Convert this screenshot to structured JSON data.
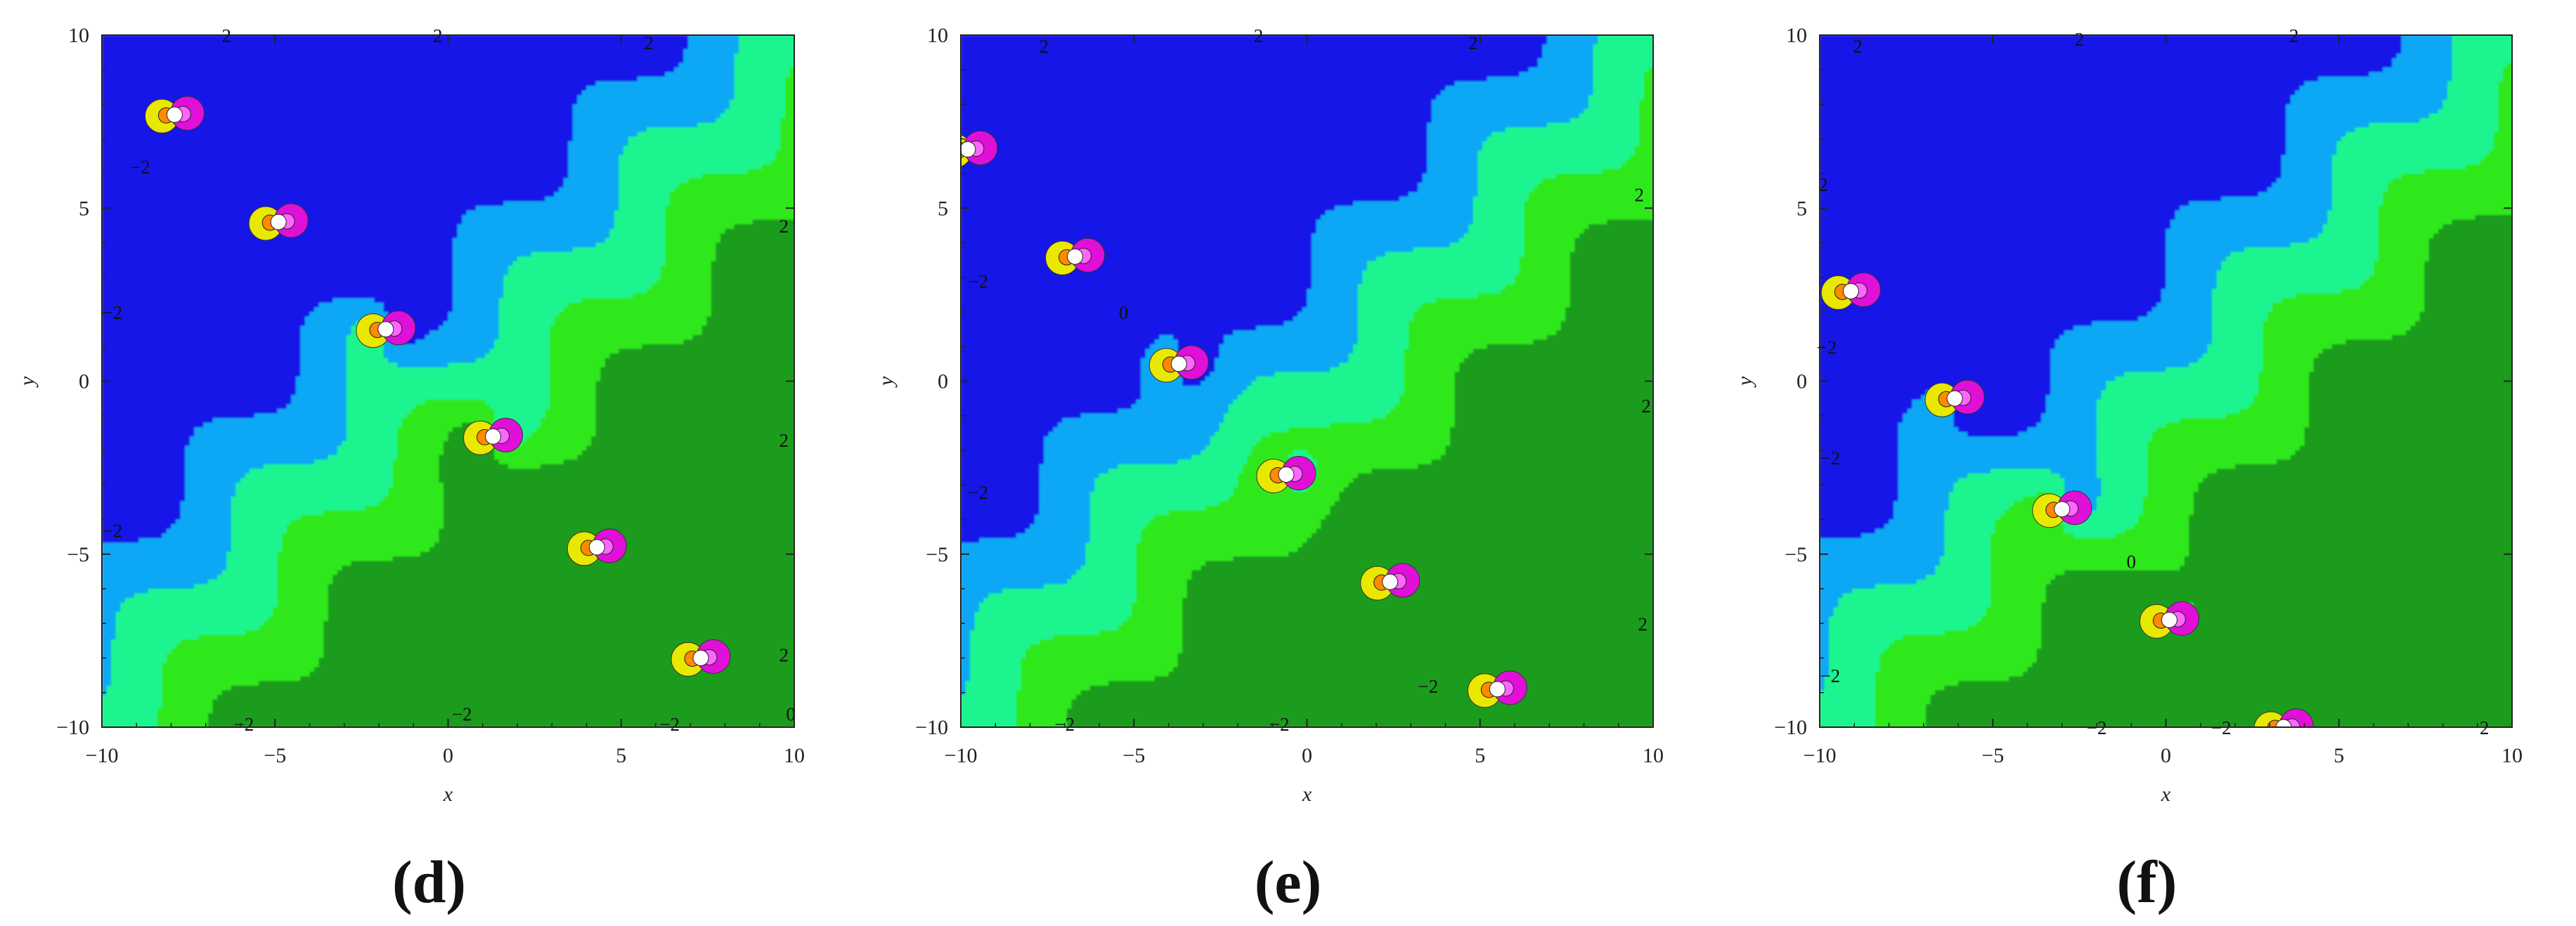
{
  "chart_data": [
    {
      "type": "contour",
      "panel_label": "(d)",
      "xlabel": "x",
      "ylabel": "y",
      "xlim": [
        -10,
        10
      ],
      "ylim": [
        -10,
        10
      ],
      "xticks": [
        "−10",
        "−5",
        "0",
        "5",
        "10"
      ],
      "yticks": [
        "10",
        "5",
        "0",
        "−5",
        "−10"
      ],
      "singularities": [
        [
          -7.9,
          7.7
        ],
        [
          -4.9,
          4.6
        ],
        [
          -1.8,
          1.5
        ],
        [
          1.3,
          -1.6
        ],
        [
          4.3,
          -4.8
        ],
        [
          7.3,
          -8.0
        ]
      ],
      "annotations": [
        {
          "text": "2",
          "x": -6.4,
          "y": 10.0
        },
        {
          "text": "2",
          "x": -0.3,
          "y": 10.0
        },
        {
          "text": "2",
          "x": 5.8,
          "y": 9.8
        },
        {
          "text": "−2",
          "x": -8.9,
          "y": 6.2
        },
        {
          "text": "−2",
          "x": -9.7,
          "y": 2.0
        },
        {
          "text": "−2",
          "x": -9.7,
          "y": -4.3
        },
        {
          "text": "2",
          "x": 9.7,
          "y": 4.5
        },
        {
          "text": "2",
          "x": 9.7,
          "y": -1.7
        },
        {
          "text": "2",
          "x": 9.7,
          "y": -7.9
        },
        {
          "text": "0",
          "x": 9.9,
          "y": -9.6
        },
        {
          "text": "−2",
          "x": -5.9,
          "y": -9.9
        },
        {
          "text": "−2",
          "x": 0.4,
          "y": -9.6
        },
        {
          "text": "−2",
          "x": 6.4,
          "y": -9.9
        }
      ]
    },
    {
      "type": "contour",
      "panel_label": "(e)",
      "xlabel": "x",
      "ylabel": "y",
      "xlim": [
        -10,
        10
      ],
      "ylim": [
        -10,
        10
      ],
      "xticks": [
        "−10",
        "−5",
        "0",
        "5",
        "10"
      ],
      "yticks": [
        "10",
        "5",
        "0",
        "−5",
        "−10"
      ],
      "singularities": [
        [
          -9.8,
          6.7
        ],
        [
          -6.7,
          3.6
        ],
        [
          -3.7,
          0.5
        ],
        [
          -0.6,
          -2.7
        ],
        [
          2.4,
          -5.8
        ],
        [
          5.5,
          -8.9
        ]
      ],
      "annotations": [
        {
          "text": "2",
          "x": -7.6,
          "y": 9.7
        },
        {
          "text": "2",
          "x": -1.4,
          "y": 10.0
        },
        {
          "text": "2",
          "x": 4.8,
          "y": 9.8
        },
        {
          "text": "2",
          "x": 9.6,
          "y": 5.4
        },
        {
          "text": "2",
          "x": 9.8,
          "y": -0.7
        },
        {
          "text": "2",
          "x": 9.7,
          "y": -7.0
        },
        {
          "text": "−2",
          "x": -9.5,
          "y": 2.9
        },
        {
          "text": "−2",
          "x": -9.5,
          "y": -3.2
        },
        {
          "text": "0",
          "x": -5.3,
          "y": 2.0
        },
        {
          "text": "−2",
          "x": -7.0,
          "y": -9.9
        },
        {
          "text": "−2",
          "x": -0.8,
          "y": -9.9
        },
        {
          "text": "−2",
          "x": 3.5,
          "y": -8.8
        }
      ]
    },
    {
      "type": "contour",
      "panel_label": "(f)",
      "xlabel": "x",
      "ylabel": "y",
      "xlim": [
        -10,
        10
      ],
      "ylim": [
        -10,
        10
      ],
      "xticks": [
        "−10",
        "−5",
        "0",
        "5",
        "10"
      ],
      "yticks": [
        "10",
        "5",
        "0",
        "−5",
        "−10"
      ],
      "singularities": [
        [
          -9.1,
          2.6
        ],
        [
          -6.1,
          -0.5
        ],
        [
          -3.0,
          -3.7
        ],
        [
          0.1,
          -6.9
        ],
        [
          3.4,
          -10.0
        ]
      ],
      "annotations": [
        {
          "text": "2",
          "x": -8.9,
          "y": 9.7
        },
        {
          "text": "2",
          "x": -2.5,
          "y": 9.9
        },
        {
          "text": "2",
          "x": 3.7,
          "y": 10.0
        },
        {
          "text": "2",
          "x": -9.9,
          "y": 5.7
        },
        {
          "text": "−2",
          "x": -9.8,
          "y": 1.0
        },
        {
          "text": "−2",
          "x": -9.7,
          "y": -2.2
        },
        {
          "text": "−2",
          "x": -9.7,
          "y": -8.5
        },
        {
          "text": "0",
          "x": -1.0,
          "y": -5.2
        },
        {
          "text": "−2",
          "x": -2.0,
          "y": -10.0
        },
        {
          "text": "−2",
          "x": 1.6,
          "y": -10.0
        },
        {
          "text": "2",
          "x": 9.2,
          "y": -10.0
        }
      ]
    }
  ]
}
